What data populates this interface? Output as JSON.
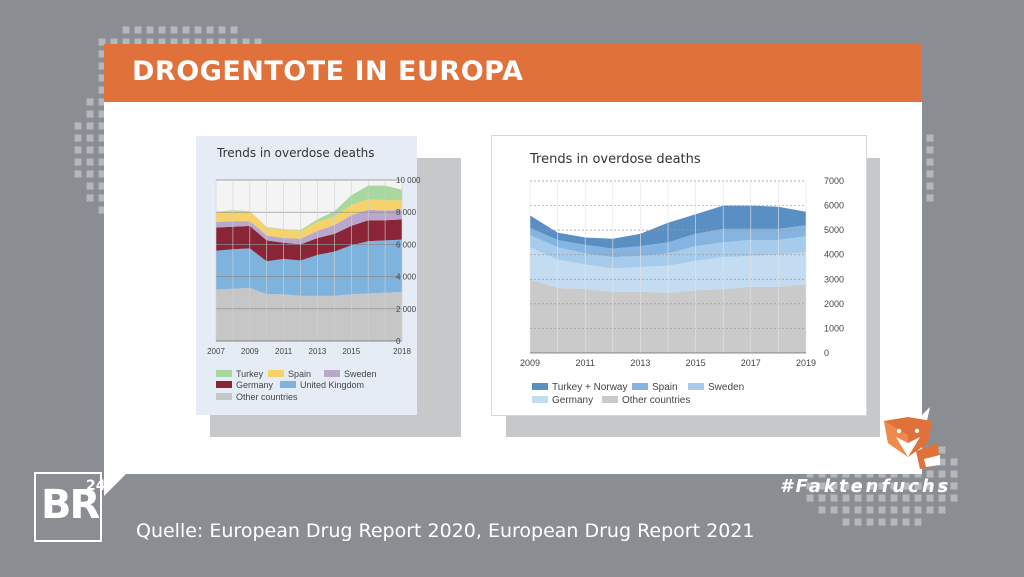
{
  "header": {
    "title": "DROGENTOTE IN EUROPA"
  },
  "footer": {
    "source": "Quelle: European Drug Report 2020, European Drug Report 2021",
    "hashtag": "#Faktenfuchs",
    "logo_main": "BR",
    "logo_sup": "24"
  },
  "icons": {
    "logo": "br24-logo-icon",
    "mascot": "fox-icon"
  },
  "colors": {
    "accent": "#e0713a",
    "left_turkey": "#a8d8a0",
    "left_spain": "#f5d36a",
    "left_sweden": "#b9a7cc",
    "left_germany": "#8a2538",
    "left_uk": "#7eb3de",
    "left_other": "#c6c6c6",
    "right_turkey_norway": "#5a8fc4",
    "right_spain": "#86b4e0",
    "right_sweden": "#a7cbea",
    "right_germany": "#c4dcf2",
    "right_other": "#cacaca"
  },
  "chart_data": [
    {
      "type": "area",
      "title": "Trends in overdose deaths",
      "x": [
        2007,
        2008,
        2009,
        2010,
        2011,
        2012,
        2013,
        2014,
        2015,
        2016,
        2017,
        2018
      ],
      "x_tick_labels": [
        "2007",
        "2009",
        "2011",
        "2013",
        "2015",
        "2018"
      ],
      "y_tick_labels": [
        "0",
        "2 000",
        "4 000",
        "6 000",
        "8 000",
        "10 000"
      ],
      "ylim": [
        0,
        10000
      ],
      "y_axis_side": "right",
      "legend_position": "bottom",
      "stacked": true,
      "series": [
        {
          "name": "Other countries",
          "values": [
            3200,
            3250,
            3300,
            2900,
            2900,
            2800,
            2800,
            2800,
            2900,
            2950,
            3000,
            3050
          ]
        },
        {
          "name": "United Kingdom",
          "values": [
            2400,
            2450,
            2450,
            2050,
            2200,
            2200,
            2550,
            2750,
            3050,
            3250,
            3250,
            3250
          ]
        },
        {
          "name": "Germany",
          "values": [
            1450,
            1400,
            1400,
            1300,
            1000,
            1000,
            1050,
            1100,
            1200,
            1300,
            1250,
            1250
          ]
        },
        {
          "name": "Sweden",
          "values": [
            350,
            350,
            300,
            300,
            300,
            350,
            450,
            550,
            650,
            650,
            600,
            600
          ]
        },
        {
          "name": "Spain",
          "values": [
            600,
            650,
            600,
            500,
            500,
            500,
            550,
            550,
            650,
            650,
            650,
            600
          ]
        },
        {
          "name": "Turkey",
          "values": [
            20,
            20,
            20,
            30,
            40,
            50,
            150,
            300,
            600,
            850,
            900,
            650
          ]
        }
      ]
    },
    {
      "type": "area",
      "title": "Trends in overdose deaths",
      "x": [
        2009,
        2010,
        2011,
        2012,
        2013,
        2014,
        2015,
        2016,
        2017,
        2018,
        2019
      ],
      "x_tick_labels": [
        "2009",
        "2011",
        "2013",
        "2015",
        "2017",
        "2019"
      ],
      "y_tick_labels": [
        "0",
        "1000",
        "2000",
        "3000",
        "4000",
        "5000",
        "6000",
        "7000"
      ],
      "ylim": [
        0,
        7000
      ],
      "y_axis_side": "right",
      "legend_position": "bottom",
      "stacked": true,
      "series": [
        {
          "name": "Other countries",
          "values": [
            3000,
            2650,
            2600,
            2500,
            2500,
            2450,
            2550,
            2600,
            2700,
            2700,
            2800
          ]
        },
        {
          "name": "Germany",
          "values": [
            1300,
            1150,
            1000,
            950,
            1000,
            1100,
            1200,
            1300,
            1250,
            1300,
            1300
          ]
        },
        {
          "name": "Sweden",
          "values": [
            500,
            500,
            450,
            450,
            450,
            500,
            600,
            600,
            650,
            600,
            650
          ]
        },
        {
          "name": "Spain",
          "values": [
            300,
            300,
            350,
            350,
            400,
            450,
            500,
            550,
            450,
            450,
            450
          ]
        },
        {
          "name": "Turkey + Norway",
          "values": [
            500,
            300,
            300,
            400,
            500,
            800,
            800,
            950,
            950,
            900,
            550
          ]
        }
      ]
    }
  ]
}
